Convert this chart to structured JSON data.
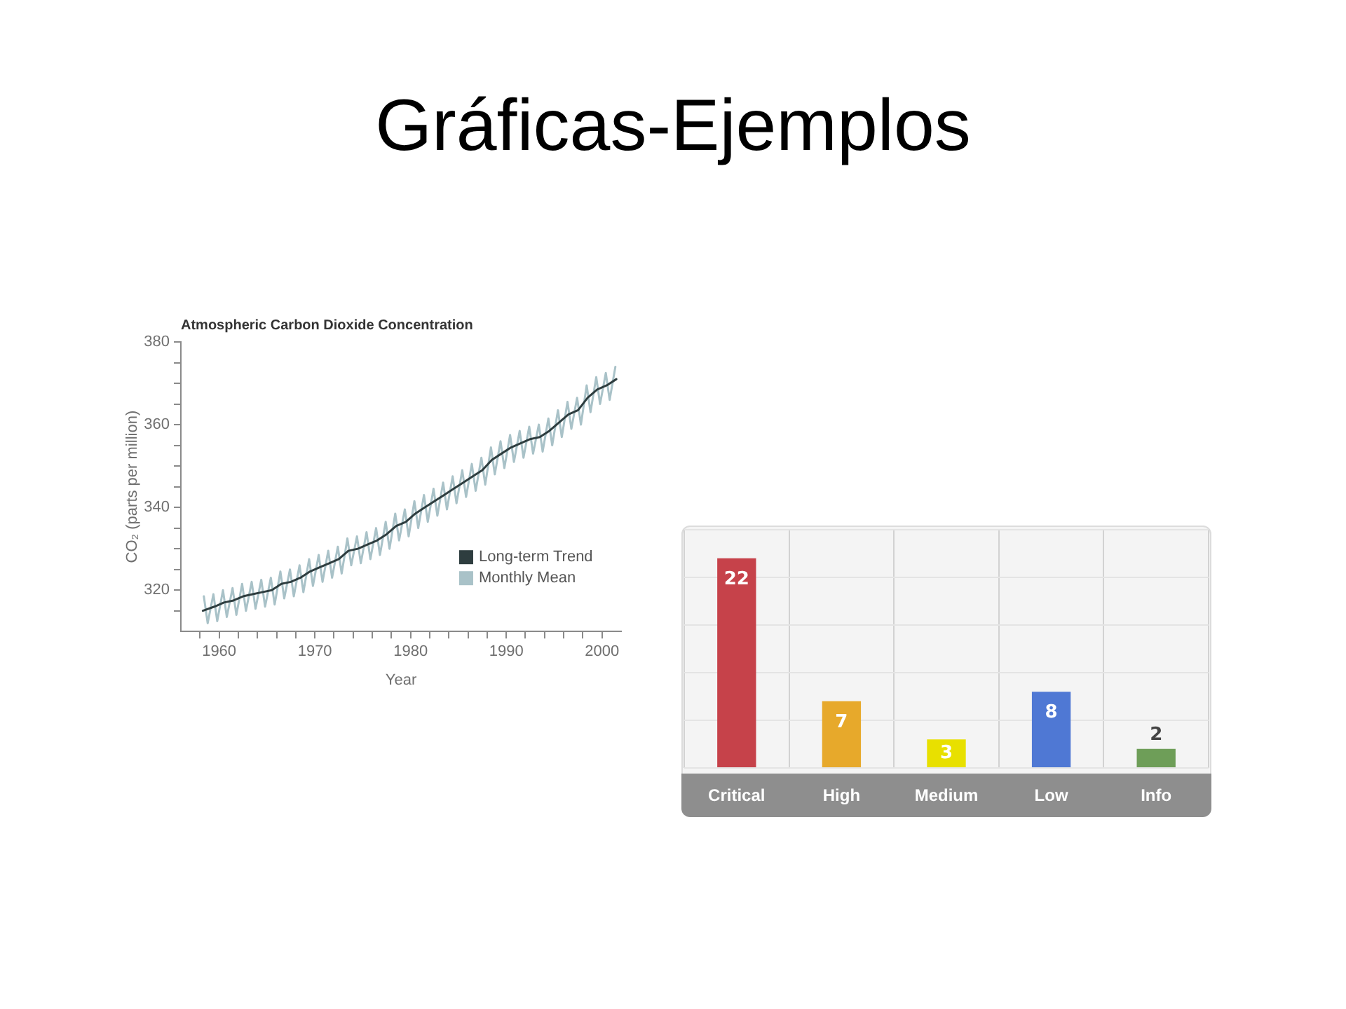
{
  "chart_data": [
    {
      "type": "other",
      "title": "Gráficas-Ejemplos"
    },
    {
      "type": "line",
      "title": "Atmospheric Carbon Dioxide Concentration",
      "xlabel": "Year",
      "ylabel": "CO₂ (parts per million)",
      "xlim": [
        1956,
        2002
      ],
      "xticks": [
        {
          "value": 1958,
          "label": null
        },
        1960,
        {
          "value": 1962,
          "label": null
        },
        {
          "value": 1964,
          "label": null
        },
        {
          "value": 1966,
          "label": null
        },
        {
          "value": 1968,
          "label": null
        },
        1970,
        {
          "value": 1972,
          "label": null
        },
        {
          "value": 1974,
          "label": null
        },
        {
          "value": 1976,
          "label": null
        },
        {
          "value": 1978,
          "label": null
        },
        1980,
        {
          "value": 1982,
          "label": null
        },
        {
          "value": 1984,
          "label": null
        },
        {
          "value": 1986,
          "label": null
        },
        {
          "value": 1988,
          "label": null
        },
        1990,
        {
          "value": 1992,
          "label": null
        },
        {
          "value": 1994,
          "label": null
        },
        {
          "value": 1996,
          "label": null
        },
        {
          "value": 1998,
          "label": null
        },
        2000
      ],
      "ylim": [
        310,
        380
      ],
      "yticks": [
        {
          "value": 315,
          "label": null
        },
        320,
        {
          "value": 325,
          "label": null
        },
        {
          "value": 330,
          "label": null
        },
        {
          "value": 335,
          "label": null
        },
        340,
        {
          "value": 345,
          "label": null
        },
        {
          "value": 350,
          "label": null
        },
        {
          "value": 355,
          "label": null
        },
        360,
        {
          "value": 365,
          "label": null
        },
        {
          "value": 370,
          "label": null
        },
        {
          "value": 375,
          "label": null
        },
        380
      ],
      "grid": false,
      "legend": "bottom right",
      "series": [
        {
          "name": "Long-term Trend",
          "color": "#2e3d3f",
          "x": [
            1958.3,
            1959.5,
            1960.5,
            1961.5,
            1962.5,
            1963.5,
            1964.5,
            1965.5,
            1966.5,
            1967.5,
            1968.5,
            1969.5,
            1970.5,
            1971.5,
            1972.5,
            1973.5,
            1974.5,
            1975.5,
            1976.5,
            1977.5,
            1978.5,
            1979.5,
            1980.5,
            1981.5,
            1982.5,
            1983.5,
            1984.5,
            1985.5,
            1986.5,
            1987.5,
            1988.5,
            1989.5,
            1990.5,
            1991.5,
            1992.5,
            1993.5,
            1994.5,
            1995.5,
            1996.5,
            1997.5,
            1998.5,
            1999.5,
            2000.5,
            2001.5
          ],
          "values": [
            315,
            316,
            317,
            317.5,
            318.5,
            319,
            319.5,
            320,
            321.5,
            322,
            323,
            324.5,
            325.5,
            326.5,
            327.5,
            329.5,
            330,
            331,
            332,
            333.5,
            335.5,
            336.5,
            338.5,
            340,
            341.5,
            343,
            344.5,
            346,
            347.5,
            349,
            351.5,
            353,
            354.5,
            355.5,
            356.5,
            357,
            358.5,
            360.5,
            362.5,
            363.5,
            366.5,
            368.5,
            369.5,
            371
          ]
        },
        {
          "name": "Monthly Mean",
          "color": "#a9c2c8",
          "x": [
            1958.4,
            1958.8,
            1959.4,
            1959.8,
            1960.4,
            1960.8,
            1961.4,
            1961.8,
            1962.4,
            1962.8,
            1963.4,
            1963.8,
            1964.4,
            1964.8,
            1965.4,
            1965.8,
            1966.4,
            1966.8,
            1967.4,
            1967.8,
            1968.4,
            1968.8,
            1969.4,
            1969.8,
            1970.4,
            1970.8,
            1971.4,
            1971.8,
            1972.4,
            1972.8,
            1973.4,
            1973.8,
            1974.4,
            1974.8,
            1975.4,
            1975.8,
            1976.4,
            1976.8,
            1977.4,
            1977.8,
            1978.4,
            1978.8,
            1979.4,
            1979.8,
            1980.4,
            1980.8,
            1981.4,
            1981.8,
            1982.4,
            1982.8,
            1983.4,
            1983.8,
            1984.4,
            1984.8,
            1985.4,
            1985.8,
            1986.4,
            1986.8,
            1987.4,
            1987.8,
            1988.4,
            1988.8,
            1989.4,
            1989.8,
            1990.4,
            1990.8,
            1991.4,
            1991.8,
            1992.4,
            1992.8,
            1993.4,
            1993.8,
            1994.4,
            1994.8,
            1995.4,
            1995.8,
            1996.4,
            1996.8,
            1997.4,
            1997.8,
            1998.4,
            1998.8,
            1999.4,
            1999.8,
            2000.4,
            2000.8,
            2001.4
          ],
          "values": [
            318.5,
            312,
            319,
            312.5,
            320,
            313.5,
            320.5,
            314,
            321.5,
            315,
            322,
            315.5,
            322.5,
            316,
            323,
            316.5,
            324.5,
            318,
            325,
            318.5,
            326,
            319.5,
            327.5,
            321,
            328.5,
            322,
            329.5,
            323,
            330.5,
            324,
            332.5,
            326,
            333,
            326.5,
            334,
            327.5,
            335,
            328.5,
            336.5,
            330,
            338.5,
            332,
            339.5,
            333,
            341.5,
            335,
            343,
            336.5,
            344.5,
            338,
            346,
            339.5,
            347.5,
            341,
            349,
            342.5,
            350.5,
            344,
            352,
            345.5,
            354.5,
            348,
            356,
            349.5,
            357.5,
            351,
            358.5,
            352,
            359.5,
            353,
            360,
            353.5,
            361.5,
            355,
            363.5,
            357,
            365.5,
            359,
            366.5,
            360,
            369.5,
            363,
            371.5,
            365,
            372.5,
            366,
            374
          ]
        }
      ]
    },
    {
      "type": "bar",
      "categories": [
        "Critical",
        "High",
        "Medium",
        "Low",
        "Info"
      ],
      "values": [
        22,
        7,
        3,
        8,
        2
      ],
      "colors": [
        "#c6424a",
        "#e7a92b",
        "#e8e000",
        "#4f78d4",
        "#6e9e58"
      ],
      "data_labels": true,
      "grid": true,
      "tick_labels": "x"
    }
  ]
}
